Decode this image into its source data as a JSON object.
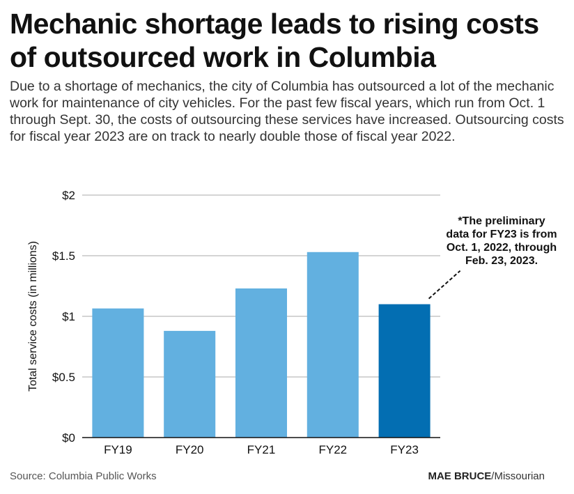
{
  "title": "Mechanic shortage leads to rising costs of outsourced work in Columbia",
  "subtitle": "Due to a shortage of mechanics, the city of Columbia has outsourced a lot of the mechanic work for maintenance of city vehicles. For the past few fiscal years, which run from Oct. 1 through Sept. 30, the costs of outsourcing these services have increased. Outsourcing costs for fiscal year 2023 are on track to nearly double those of fiscal year 2022.",
  "source": "Source: Columbia Public Works",
  "credit": {
    "name": "MAE BRUCE",
    "org": "/Missourian"
  },
  "chart_data": {
    "type": "bar",
    "categories": [
      "FY19",
      "FY20",
      "FY21",
      "FY22",
      "FY23"
    ],
    "values": [
      1.065,
      0.88,
      1.23,
      1.53,
      1.1
    ],
    "ylabel": "Total service costs (in millions)",
    "ylim": [
      0,
      2
    ],
    "yticks": [
      0,
      0.5,
      1,
      1.5,
      2
    ],
    "ytick_labels": [
      "$0",
      "$0.5",
      "$1",
      "$1.5",
      "$2"
    ],
    "grid": true,
    "colors": [
      "#62b0e0",
      "#62b0e0",
      "#62b0e0",
      "#62b0e0",
      "#036eb2"
    ],
    "annotation": {
      "target": "FY23",
      "text": "*The preliminary data for FY23 is from Oct. 1, 2022, through Feb. 23, 2023."
    }
  }
}
